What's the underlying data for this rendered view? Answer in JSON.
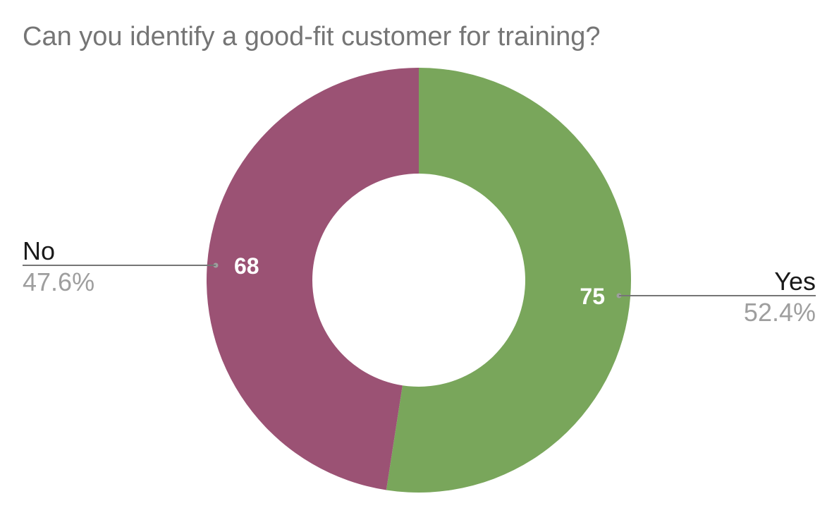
{
  "chart_data": {
    "type": "pie",
    "title": "Can you identify a good-fit customer for training?",
    "donut": true,
    "slices": [
      {
        "label": "Yes",
        "value": 75,
        "percent_label": "52.4%",
        "value_label": "75",
        "color": "#79a65b"
      },
      {
        "label": "No",
        "value": 68,
        "percent_label": "47.6%",
        "value_label": "68",
        "color": "#9b5274"
      }
    ],
    "legend": "none",
    "colors": {
      "title": "#757575",
      "category_label": "#1a1a1a",
      "percent_label": "#9e9e9e",
      "value_label": "#ffffff",
      "leader_line": "#757575"
    }
  }
}
